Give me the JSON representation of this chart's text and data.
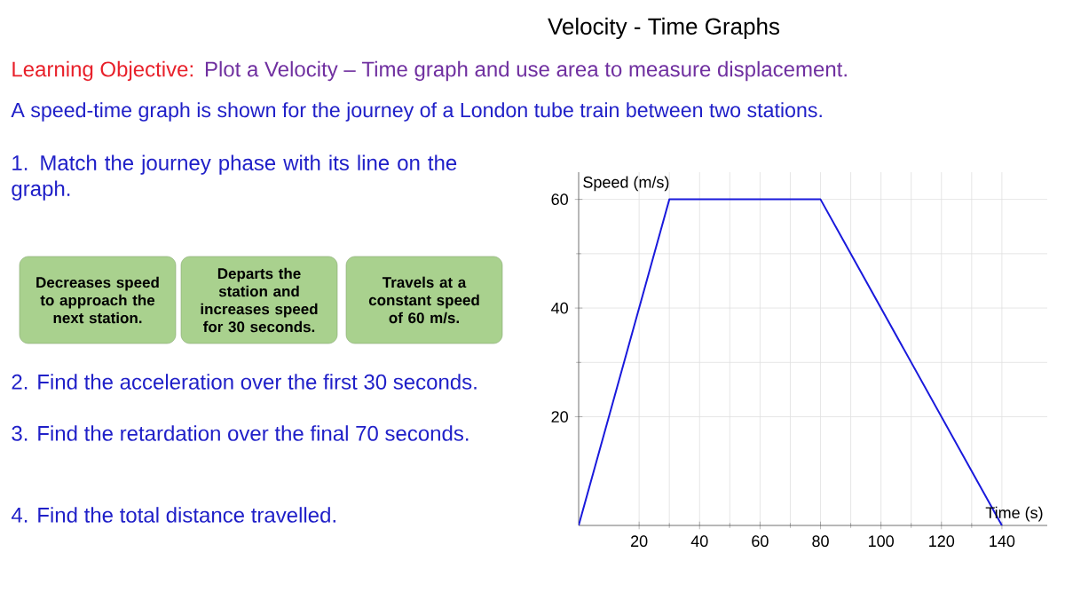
{
  "chart_data": {
    "type": "line",
    "title": "Velocity - Time Graphs",
    "xlabel": "Time (s)",
    "ylabel": "Speed (m/s)",
    "x": [
      0,
      30,
      80,
      140
    ],
    "series": [
      {
        "color": "#1a1adc",
        "values": [
          0,
          60,
          60,
          0
        ]
      }
    ],
    "xlim": [
      0,
      155
    ],
    "ylim": [
      0,
      65
    ],
    "xticks": [
      20,
      40,
      60,
      80,
      100,
      120,
      140
    ],
    "yticks": [
      20,
      40,
      60
    ],
    "grid": true,
    "line_style": "solid",
    "annotations": [
      "Learning Objective:",
      "Plot a Velocity – Time graph and use area to measure displacement.",
      "A speed-time graph is shown for the journey of a London tube train between two stations.",
      "1.  Match the journey phase with its line on the graph.",
      "Decreases speed to approach the next station.",
      "Departs the station and increases speed for 30 seconds.",
      "Travels at a constant speed of 60 m/s.",
      "2.  Find the acceleration over the first 30 seconds.",
      "3.  Find the retardation over the final 70 seconds.",
      "4.  Find the total distance travelled."
    ]
  }
}
